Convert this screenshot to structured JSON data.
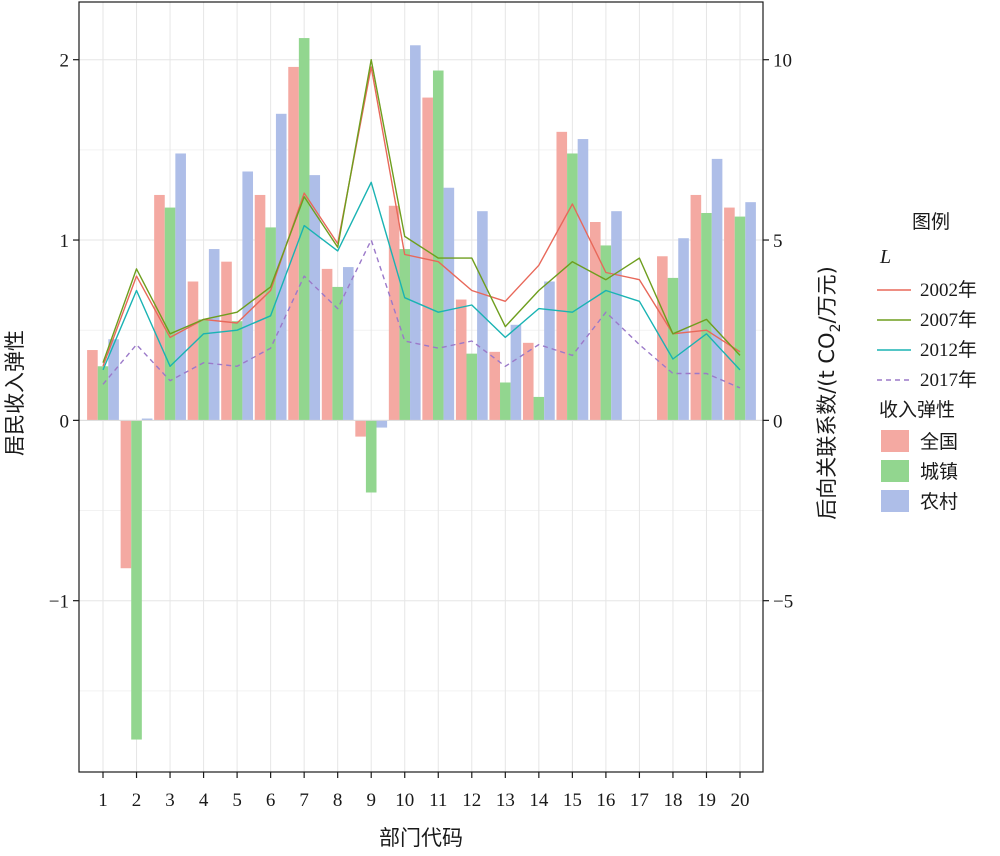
{
  "chart_data": {
    "type": "bar",
    "xlabel": "部门代码",
    "ylabel": "居民收入弹性",
    "y2label": "后向关联系数/(t CO2/万元)",
    "ylim": [
      -1.95,
      2.32
    ],
    "y2lim": [
      -9.75,
      11.6
    ],
    "yticks": [
      -1,
      0,
      1,
      2
    ],
    "y2ticks": [
      -5,
      0,
      5,
      10
    ],
    "grid": true,
    "legend_position": "right",
    "categories": [
      "1",
      "2",
      "3",
      "4",
      "5",
      "6",
      "7",
      "8",
      "9",
      "10",
      "11",
      "12",
      "13",
      "14",
      "15",
      "16",
      "17",
      "18",
      "19",
      "20"
    ],
    "bar_series": [
      {
        "name": "全国",
        "color": "#F4A9A2",
        "values": [
          0.39,
          -0.82,
          1.25,
          0.77,
          0.88,
          1.25,
          1.96,
          0.84,
          -0.09,
          1.19,
          1.79,
          0.67,
          0.38,
          0.43,
          1.6,
          1.1,
          0,
          0.91,
          1.25,
          1.18
        ]
      },
      {
        "name": "城镇",
        "color": "#92D68F",
        "values": [
          0.3,
          -1.77,
          1.18,
          0.56,
          0.55,
          1.07,
          2.12,
          0.74,
          -0.4,
          0.95,
          1.94,
          0.37,
          0.21,
          0.13,
          1.48,
          0.97,
          0,
          0.79,
          1.15,
          1.13
        ]
      },
      {
        "name": "农村",
        "color": "#AEBEE8",
        "values": [
          0.45,
          0.01,
          1.48,
          0.95,
          1.38,
          1.7,
          1.36,
          0.85,
          -0.04,
          2.08,
          1.29,
          1.16,
          0.53,
          0.77,
          1.56,
          1.16,
          0,
          1.01,
          1.45,
          1.21
        ]
      }
    ],
    "line_series": [
      {
        "name": "2002年",
        "color": "#E8685A",
        "dash": false,
        "values": [
          1.5,
          4.0,
          2.3,
          2.8,
          2.7,
          3.6,
          6.3,
          4.9,
          9.8,
          4.6,
          4.4,
          3.6,
          3.3,
          4.3,
          6.0,
          4.1,
          3.9,
          2.4,
          2.5,
          1.9
        ]
      },
      {
        "name": "2007年",
        "color": "#6E9E1E",
        "dash": false,
        "values": [
          1.6,
          4.2,
          2.4,
          2.8,
          3.0,
          3.7,
          6.2,
          4.8,
          10.0,
          5.1,
          4.5,
          4.5,
          2.6,
          3.6,
          4.4,
          3.9,
          4.5,
          2.4,
          2.8,
          1.8
        ]
      },
      {
        "name": "2012年",
        "color": "#1AB3B3",
        "dash": false,
        "values": [
          1.4,
          3.6,
          1.5,
          2.4,
          2.5,
          2.9,
          5.4,
          4.7,
          6.6,
          3.4,
          3.0,
          3.2,
          2.3,
          3.1,
          3.0,
          3.6,
          3.3,
          1.7,
          2.4,
          1.4
        ]
      },
      {
        "name": "2017年",
        "color": "#9B79C9",
        "dash": true,
        "values": [
          1.0,
          2.1,
          1.1,
          1.6,
          1.5,
          2.0,
          4.0,
          3.1,
          5.0,
          2.2,
          2.0,
          2.2,
          1.5,
          2.1,
          1.8,
          3.0,
          2.1,
          1.3,
          1.3,
          0.9
        ]
      }
    ],
    "legend": {
      "title": "图例",
      "line_group_title": "L",
      "bar_group_title": "收入弹性"
    }
  }
}
